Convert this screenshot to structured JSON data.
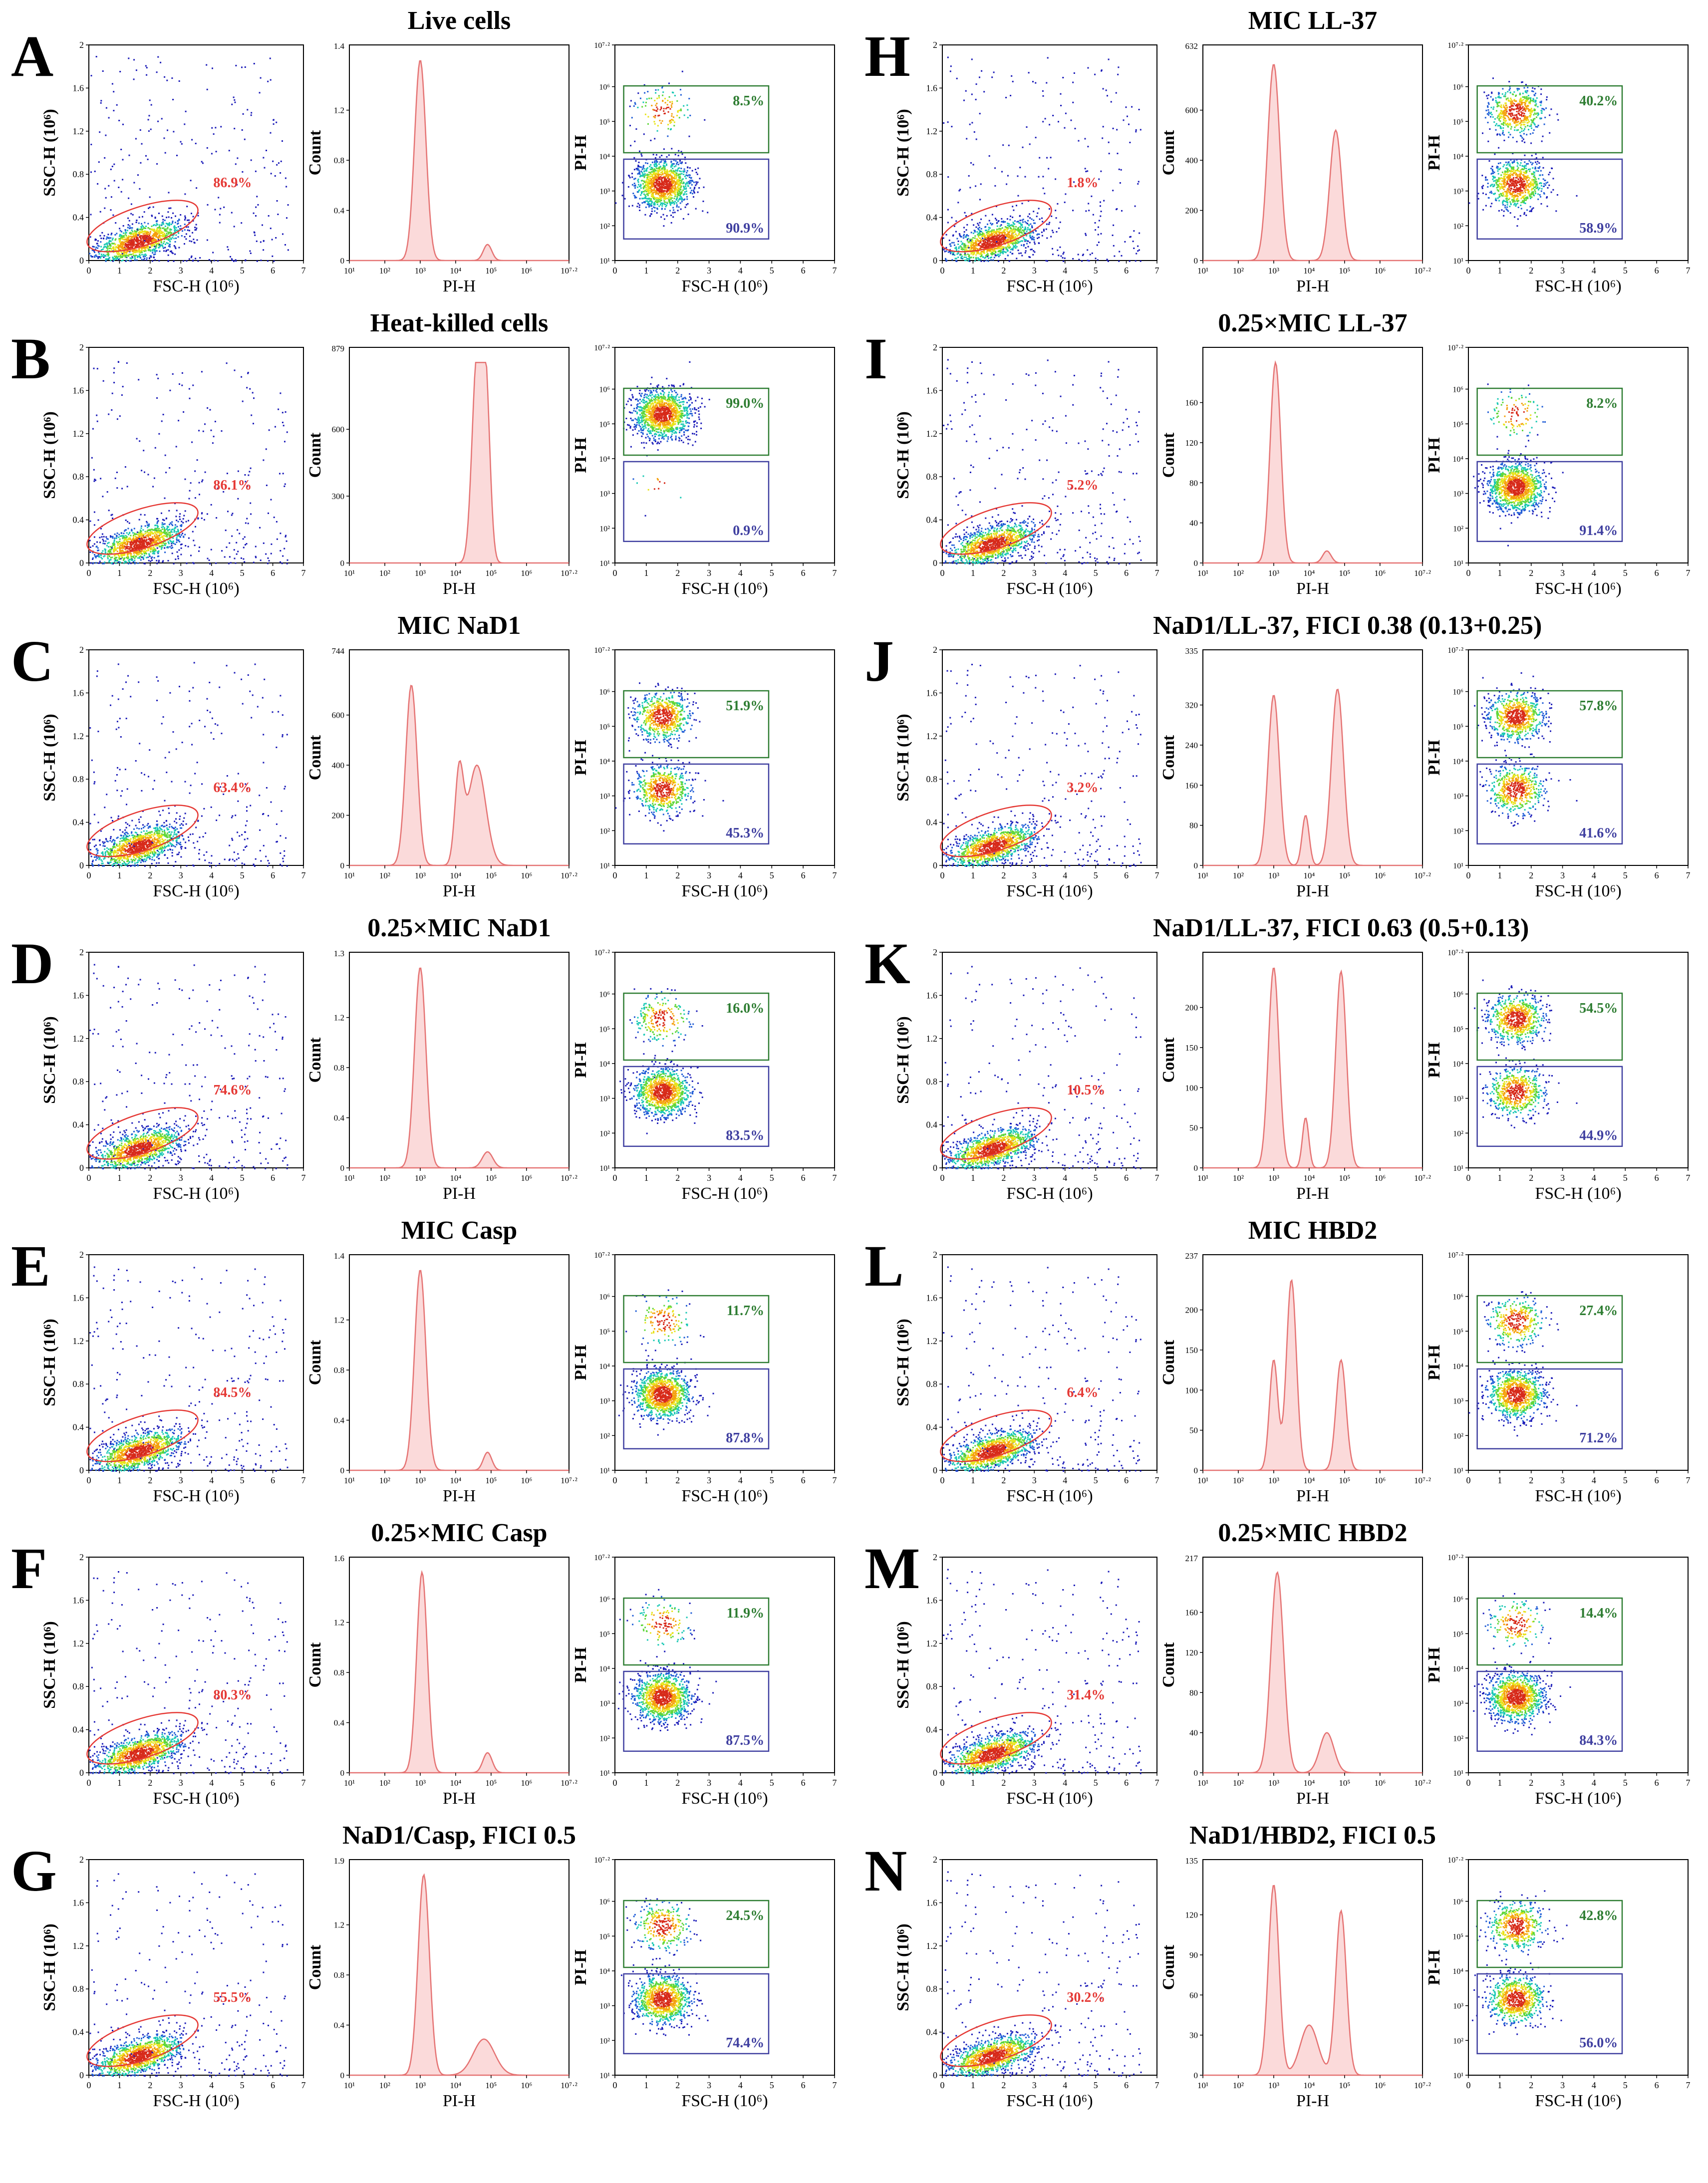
{
  "colors": {
    "dead_gate": "#2e7d32",
    "live_gate": "#3f3fa0",
    "cell_gate": "#e53935",
    "histogram": "#e57373",
    "histogram_fill": "#fbdada"
  },
  "axes": {
    "scatter_x": "FSC-H (10⁶)",
    "scatter_y": "SSC-H (10⁶)",
    "hist_x": "PI-H",
    "hist_y": "Count",
    "pi_x": "FSC-H (10⁶)",
    "pi_y": "PI-H",
    "fsc_ticks": [
      "0",
      "1",
      "2",
      "3",
      "4",
      "5",
      "6",
      "7"
    ],
    "ssc_ticks": [
      "0",
      "0.4",
      "0.8",
      "1.2",
      "1.6",
      "2"
    ],
    "log_ticks": [
      "10¹",
      "10²",
      "10³",
      "10⁴",
      "10⁵",
      "10⁶",
      "10⁷·²"
    ]
  },
  "chart_data": [
    {
      "label": "A",
      "title": "Live cells",
      "type": "scatter",
      "cell_gate_pct": "86.9%",
      "dead_pct": "8.5%",
      "live_pct": "90.9%",
      "hist_ymax": "1.4",
      "hist_yticks": [
        "0",
        "0.4",
        "0.8",
        "1.2"
      ],
      "hist_peaks_log": [
        {
          "x": 3.0,
          "h": 1.0,
          "w": 0.16
        },
        {
          "x": 4.9,
          "h": 0.08,
          "w": 0.12
        }
      ]
    },
    {
      "label": "B",
      "title": "Heat-killed cells",
      "type": "scatter",
      "cell_gate_pct": "86.1%",
      "dead_pct": "99.0%",
      "live_pct": "0.9%",
      "hist_ymax": "879",
      "hist_yticks": [
        "0",
        "300",
        "600"
      ],
      "hist_peaks_log": [
        {
          "x": 4.6,
          "h": 1.0,
          "w": 0.14
        },
        {
          "x": 4.85,
          "h": 0.85,
          "w": 0.12
        }
      ]
    },
    {
      "label": "C",
      "title": "MIC NaD1",
      "type": "scatter",
      "cell_gate_pct": "63.4%",
      "dead_pct": "51.9%",
      "live_pct": "45.3%",
      "hist_ymax": "744",
      "hist_yticks": [
        "0",
        "200",
        "400",
        "600"
      ],
      "hist_peaks_log": [
        {
          "x": 2.75,
          "h": 0.9,
          "w": 0.16
        },
        {
          "x": 4.1,
          "h": 0.45,
          "w": 0.12
        },
        {
          "x": 4.6,
          "h": 0.5,
          "w": 0.25
        }
      ]
    },
    {
      "label": "D",
      "title": "0.25×MIC NaD1",
      "type": "scatter",
      "cell_gate_pct": "74.6%",
      "dead_pct": "16.0%",
      "live_pct": "83.5%",
      "hist_ymax": "1.3",
      "hist_yticks": [
        "0",
        "0.4",
        "0.8",
        "1.2"
      ],
      "hist_peaks_log": [
        {
          "x": 3.0,
          "h": 1.0,
          "w": 0.16
        },
        {
          "x": 4.9,
          "h": 0.08,
          "w": 0.15
        }
      ]
    },
    {
      "label": "E",
      "title": "MIC Casp",
      "type": "scatter",
      "cell_gate_pct": "84.5%",
      "dead_pct": "11.7%",
      "live_pct": "87.8%",
      "hist_ymax": "1.4",
      "hist_yticks": [
        "0",
        "0.4",
        "0.8",
        "1.2"
      ],
      "hist_peaks_log": [
        {
          "x": 3.0,
          "h": 1.0,
          "w": 0.16
        },
        {
          "x": 4.9,
          "h": 0.09,
          "w": 0.12
        }
      ]
    },
    {
      "label": "F",
      "title": "0.25×MIC Casp",
      "type": "scatter",
      "cell_gate_pct": "80.3%",
      "dead_pct": "11.9%",
      "live_pct": "87.5%",
      "hist_ymax": "1.6",
      "hist_yticks": [
        "0",
        "0.4",
        "0.8",
        "1.2"
      ],
      "hist_peaks_log": [
        {
          "x": 3.05,
          "h": 1.0,
          "w": 0.15
        },
        {
          "x": 4.9,
          "h": 0.1,
          "w": 0.13
        }
      ]
    },
    {
      "label": "G",
      "title": "NaD1/Casp, FICI 0.5",
      "type": "scatter",
      "cell_gate_pct": "55.5%",
      "dead_pct": "24.5%",
      "live_pct": "74.4%",
      "hist_ymax": "1.9",
      "hist_yticks": [
        "0",
        "0.4",
        "0.8",
        "1.2"
      ],
      "hist_peaks_log": [
        {
          "x": 3.1,
          "h": 1.0,
          "w": 0.16
        },
        {
          "x": 4.8,
          "h": 0.18,
          "w": 0.3
        }
      ]
    },
    {
      "label": "H",
      "title": "MIC LL-37",
      "type": "scatter",
      "cell_gate_pct": "1.8%",
      "dead_pct": "40.2%",
      "live_pct": "58.9%",
      "hist_ymax": "632",
      "hist_yticks": [
        "0",
        "200",
        "400",
        "600"
      ],
      "hist_peaks_log": [
        {
          "x": 3.0,
          "h": 0.98,
          "w": 0.17
        },
        {
          "x": 4.75,
          "h": 0.65,
          "w": 0.17
        }
      ]
    },
    {
      "label": "I",
      "title": "0.25×MIC LL-37",
      "type": "scatter",
      "cell_gate_pct": "5.2%",
      "dead_pct": "8.2%",
      "live_pct": "91.4%",
      "hist_ymax": "",
      "hist_yticks": [
        "0",
        "40",
        "80",
        "120",
        "160"
      ],
      "hist_peaks_log": [
        {
          "x": 3.05,
          "h": 1.0,
          "w": 0.15
        },
        {
          "x": 4.5,
          "h": 0.06,
          "w": 0.12
        }
      ]
    },
    {
      "label": "J",
      "title": "NaD1/LL-37, FICI 0.38 (0.13+0.25)",
      "type": "scatter",
      "cell_gate_pct": "3.2%",
      "dead_pct": "57.8%",
      "live_pct": "41.6%",
      "hist_ymax": "335",
      "hist_yticks": [
        "0",
        "80",
        "160",
        "240",
        "320"
      ],
      "hist_peaks_log": [
        {
          "x": 3.0,
          "h": 0.85,
          "w": 0.16
        },
        {
          "x": 3.9,
          "h": 0.25,
          "w": 0.1
        },
        {
          "x": 4.8,
          "h": 0.88,
          "w": 0.17
        }
      ]
    },
    {
      "label": "K",
      "title": "NaD1/LL-37, FICI 0.63 (0.5+0.13)",
      "type": "scatter",
      "cell_gate_pct": "10.5%",
      "dead_pct": "54.5%",
      "live_pct": "44.9%",
      "hist_ymax": "",
      "hist_yticks": [
        "0",
        "50",
        "100",
        "150",
        "200"
      ],
      "hist_peaks_log": [
        {
          "x": 3.0,
          "h": 1.0,
          "w": 0.15
        },
        {
          "x": 3.9,
          "h": 0.25,
          "w": 0.09
        },
        {
          "x": 4.9,
          "h": 0.98,
          "w": 0.15
        }
      ]
    },
    {
      "label": "L",
      "title": "MIC HBD2",
      "type": "scatter",
      "cell_gate_pct": "6.4%",
      "dead_pct": "27.4%",
      "live_pct": "71.2%",
      "hist_ymax": "237",
      "hist_yticks": [
        "0",
        "50",
        "100",
        "150",
        "200"
      ],
      "hist_peaks_log": [
        {
          "x": 3.0,
          "h": 0.55,
          "w": 0.12
        },
        {
          "x": 3.5,
          "h": 0.95,
          "w": 0.14
        },
        {
          "x": 4.9,
          "h": 0.55,
          "w": 0.14
        }
      ]
    },
    {
      "label": "M",
      "title": "0.25×MIC HBD2",
      "type": "scatter",
      "cell_gate_pct": "31.4%",
      "dead_pct": "14.4%",
      "live_pct": "84.3%",
      "hist_ymax": "217",
      "hist_yticks": [
        "0",
        "40",
        "80",
        "120",
        "160"
      ],
      "hist_peaks_log": [
        {
          "x": 3.1,
          "h": 1.0,
          "w": 0.18
        },
        {
          "x": 4.5,
          "h": 0.2,
          "w": 0.2
        }
      ]
    },
    {
      "label": "N",
      "title": "NaD1/HBD2, FICI 0.5",
      "type": "scatter",
      "cell_gate_pct": "30.2%",
      "dead_pct": "42.8%",
      "live_pct": "56.0%",
      "hist_ymax": "135",
      "hist_yticks": [
        "0",
        "30",
        "60",
        "90",
        "120"
      ],
      "hist_peaks_log": [
        {
          "x": 3.0,
          "h": 0.95,
          "w": 0.15
        },
        {
          "x": 4.0,
          "h": 0.25,
          "w": 0.25
        },
        {
          "x": 4.9,
          "h": 0.82,
          "w": 0.15
        }
      ]
    }
  ]
}
